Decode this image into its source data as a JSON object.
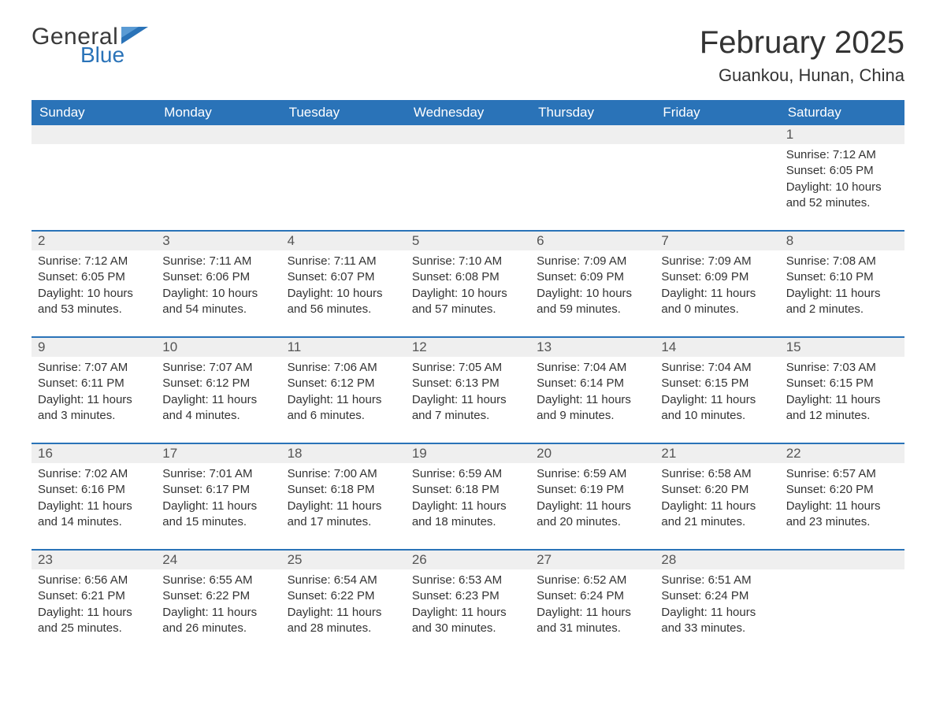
{
  "brand": {
    "word1": "General",
    "word2": "Blue",
    "accent_color": "#2a73b8"
  },
  "title": "February 2025",
  "location": "Guankou, Hunan, China",
  "colors": {
    "header_bg": "#2a73b8",
    "header_text": "#ffffff",
    "daynum_bg": "#efefef",
    "rule": "#2a73b8",
    "body_text": "#333333",
    "background": "#ffffff"
  },
  "typography": {
    "title_fontsize": 40,
    "location_fontsize": 22,
    "dayhead_fontsize": 17,
    "daynum_fontsize": 17,
    "cell_fontsize": 15,
    "font_family": "Arial"
  },
  "day_labels": [
    "Sunday",
    "Monday",
    "Tuesday",
    "Wednesday",
    "Thursday",
    "Friday",
    "Saturday"
  ],
  "labels": {
    "sunrise": "Sunrise:",
    "sunset": "Sunset:",
    "daylight": "Daylight:"
  },
  "weeks": [
    [
      null,
      null,
      null,
      null,
      null,
      null,
      {
        "n": "1",
        "sr": "7:12 AM",
        "ss": "6:05 PM",
        "dl": "10 hours and 52 minutes."
      }
    ],
    [
      {
        "n": "2",
        "sr": "7:12 AM",
        "ss": "6:05 PM",
        "dl": "10 hours and 53 minutes."
      },
      {
        "n": "3",
        "sr": "7:11 AM",
        "ss": "6:06 PM",
        "dl": "10 hours and 54 minutes."
      },
      {
        "n": "4",
        "sr": "7:11 AM",
        "ss": "6:07 PM",
        "dl": "10 hours and 56 minutes."
      },
      {
        "n": "5",
        "sr": "7:10 AM",
        "ss": "6:08 PM",
        "dl": "10 hours and 57 minutes."
      },
      {
        "n": "6",
        "sr": "7:09 AM",
        "ss": "6:09 PM",
        "dl": "10 hours and 59 minutes."
      },
      {
        "n": "7",
        "sr": "7:09 AM",
        "ss": "6:09 PM",
        "dl": "11 hours and 0 minutes."
      },
      {
        "n": "8",
        "sr": "7:08 AM",
        "ss": "6:10 PM",
        "dl": "11 hours and 2 minutes."
      }
    ],
    [
      {
        "n": "9",
        "sr": "7:07 AM",
        "ss": "6:11 PM",
        "dl": "11 hours and 3 minutes."
      },
      {
        "n": "10",
        "sr": "7:07 AM",
        "ss": "6:12 PM",
        "dl": "11 hours and 4 minutes."
      },
      {
        "n": "11",
        "sr": "7:06 AM",
        "ss": "6:12 PM",
        "dl": "11 hours and 6 minutes."
      },
      {
        "n": "12",
        "sr": "7:05 AM",
        "ss": "6:13 PM",
        "dl": "11 hours and 7 minutes."
      },
      {
        "n": "13",
        "sr": "7:04 AM",
        "ss": "6:14 PM",
        "dl": "11 hours and 9 minutes."
      },
      {
        "n": "14",
        "sr": "7:04 AM",
        "ss": "6:15 PM",
        "dl": "11 hours and 10 minutes."
      },
      {
        "n": "15",
        "sr": "7:03 AM",
        "ss": "6:15 PM",
        "dl": "11 hours and 12 minutes."
      }
    ],
    [
      {
        "n": "16",
        "sr": "7:02 AM",
        "ss": "6:16 PM",
        "dl": "11 hours and 14 minutes."
      },
      {
        "n": "17",
        "sr": "7:01 AM",
        "ss": "6:17 PM",
        "dl": "11 hours and 15 minutes."
      },
      {
        "n": "18",
        "sr": "7:00 AM",
        "ss": "6:18 PM",
        "dl": "11 hours and 17 minutes."
      },
      {
        "n": "19",
        "sr": "6:59 AM",
        "ss": "6:18 PM",
        "dl": "11 hours and 18 minutes."
      },
      {
        "n": "20",
        "sr": "6:59 AM",
        "ss": "6:19 PM",
        "dl": "11 hours and 20 minutes."
      },
      {
        "n": "21",
        "sr": "6:58 AM",
        "ss": "6:20 PM",
        "dl": "11 hours and 21 minutes."
      },
      {
        "n": "22",
        "sr": "6:57 AM",
        "ss": "6:20 PM",
        "dl": "11 hours and 23 minutes."
      }
    ],
    [
      {
        "n": "23",
        "sr": "6:56 AM",
        "ss": "6:21 PM",
        "dl": "11 hours and 25 minutes."
      },
      {
        "n": "24",
        "sr": "6:55 AM",
        "ss": "6:22 PM",
        "dl": "11 hours and 26 minutes."
      },
      {
        "n": "25",
        "sr": "6:54 AM",
        "ss": "6:22 PM",
        "dl": "11 hours and 28 minutes."
      },
      {
        "n": "26",
        "sr": "6:53 AM",
        "ss": "6:23 PM",
        "dl": "11 hours and 30 minutes."
      },
      {
        "n": "27",
        "sr": "6:52 AM",
        "ss": "6:24 PM",
        "dl": "11 hours and 31 minutes."
      },
      {
        "n": "28",
        "sr": "6:51 AM",
        "ss": "6:24 PM",
        "dl": "11 hours and 33 minutes."
      },
      null
    ]
  ]
}
